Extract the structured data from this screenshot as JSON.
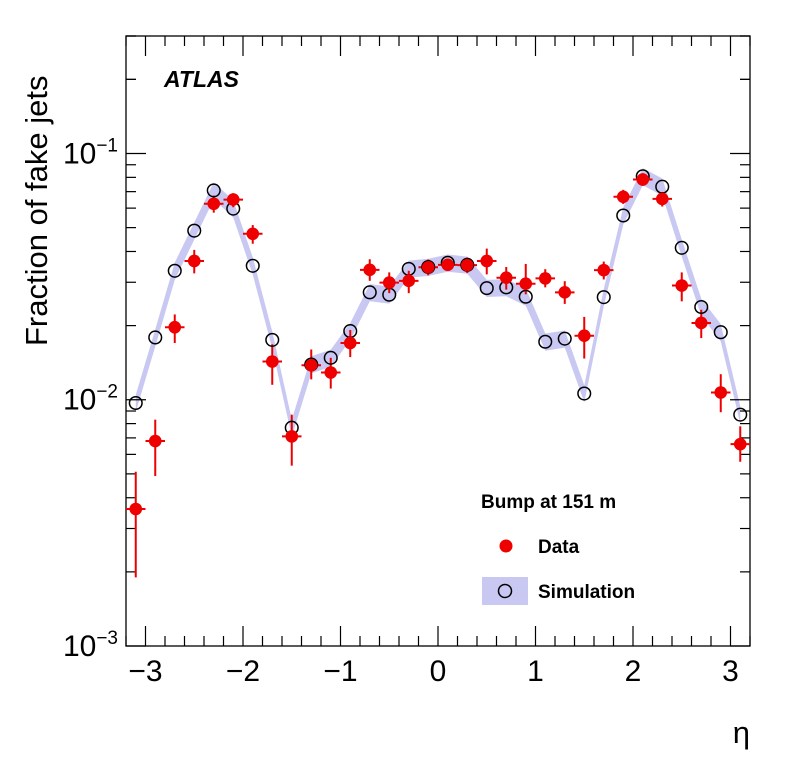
{
  "chart_data": {
    "type": "scatter",
    "title": "",
    "experiment_label": "ATLAS",
    "xlabel": "η",
    "ylabel": "Fraction of fake jets",
    "xlim": [
      -3.2,
      3.2
    ],
    "ylim": [
      0.001,
      0.3
    ],
    "yscale": "log",
    "x_ticks": [
      {
        "value": -3,
        "label": "−3"
      },
      {
        "value": -2,
        "label": "−2"
      },
      {
        "value": -1,
        "label": "−1"
      },
      {
        "value": 0,
        "label": "0"
      },
      {
        "value": 1,
        "label": "1"
      },
      {
        "value": 2,
        "label": "2"
      },
      {
        "value": 3,
        "label": "3"
      }
    ],
    "y_ticks": [
      {
        "value": 0.001,
        "base": "10",
        "exp": "−3"
      },
      {
        "value": 0.01,
        "base": "10",
        "exp": "−2"
      },
      {
        "value": 0.1,
        "base": "10",
        "exp": "−1"
      }
    ],
    "legend": {
      "title": "Bump at 151 m",
      "position": "bottom-right",
      "entries": [
        "Data",
        "Simulation"
      ]
    },
    "series": [
      {
        "name": "Data",
        "marker": "filled-circle",
        "color": "#ee0000",
        "x": [
          -3.1,
          -2.9,
          -2.7,
          -2.5,
          -2.3,
          -2.1,
          -1.9,
          -1.7,
          -1.5,
          -1.3,
          -1.1,
          -0.9,
          -0.7,
          -0.5,
          -0.3,
          -0.1,
          0.1,
          0.3,
          0.5,
          0.7,
          0.9,
          1.1,
          1.3,
          1.5,
          1.7,
          1.9,
          2.1,
          2.3,
          2.5,
          2.7,
          2.9,
          3.1
        ],
        "y": [
          0.0036,
          0.0068,
          0.0197,
          0.0366,
          0.0625,
          0.065,
          0.0472,
          0.0143,
          0.0071,
          0.0138,
          0.0129,
          0.017,
          0.0337,
          0.0299,
          0.0304,
          0.0345,
          0.0353,
          0.0352,
          0.0366,
          0.0313,
          0.0296,
          0.0311,
          0.0273,
          0.0182,
          0.0336,
          0.0667,
          0.0784,
          0.0654,
          0.0291,
          0.0205,
          0.0107,
          0.0066
        ],
        "yerr_low": [
          0.0017,
          0.0019,
          0.0027,
          0.004,
          0.005,
          0.0045,
          0.0042,
          0.0028,
          0.0017,
          0.0017,
          0.0018,
          0.0021,
          0.0033,
          0.0028,
          0.0033,
          0.0025,
          0.0019,
          0.0025,
          0.0043,
          0.0033,
          0.0028,
          0.0025,
          0.0028,
          0.0035,
          0.0028,
          0.0043,
          0.0045,
          0.0045,
          0.004,
          0.0027,
          0.0018,
          0.001
        ],
        "yerr_high": [
          0.0015,
          0.0015,
          0.0025,
          0.004,
          0.005,
          0.004,
          0.004,
          0.0025,
          0.0016,
          0.0022,
          0.0019,
          0.0022,
          0.0035,
          0.003,
          0.003,
          0.0026,
          0.002,
          0.0026,
          0.0045,
          0.0033,
          0.006,
          0.0028,
          0.003,
          0.0035,
          0.0028,
          0.0045,
          0.0048,
          0.0044,
          0.0038,
          0.0027,
          0.002,
          0.0012
        ]
      },
      {
        "name": "Simulation",
        "marker": "open-circle",
        "color": "#000000",
        "band_color": "#c8c8f3",
        "x": [
          -3.1,
          -2.9,
          -2.7,
          -2.5,
          -2.3,
          -2.1,
          -1.9,
          -1.7,
          -1.5,
          -1.3,
          -1.1,
          -0.9,
          -0.7,
          -0.5,
          -0.3,
          -0.1,
          0.1,
          0.3,
          0.5,
          0.7,
          0.9,
          1.1,
          1.3,
          1.5,
          1.7,
          1.9,
          2.1,
          2.3,
          2.5,
          2.7,
          2.9,
          3.1
        ],
        "y": [
          0.0097,
          0.0179,
          0.0334,
          0.0486,
          0.0708,
          0.0597,
          0.035,
          0.0175,
          0.0077,
          0.0139,
          0.0148,
          0.019,
          0.0273,
          0.0267,
          0.034,
          0.0346,
          0.036,
          0.0353,
          0.0284,
          0.0286,
          0.0262,
          0.0172,
          0.0177,
          0.0106,
          0.0261,
          0.056,
          0.0808,
          0.0733,
          0.0414,
          0.0238,
          0.0188,
          0.0087
        ],
        "band_half_width_fraction": 0.08
      }
    ]
  }
}
